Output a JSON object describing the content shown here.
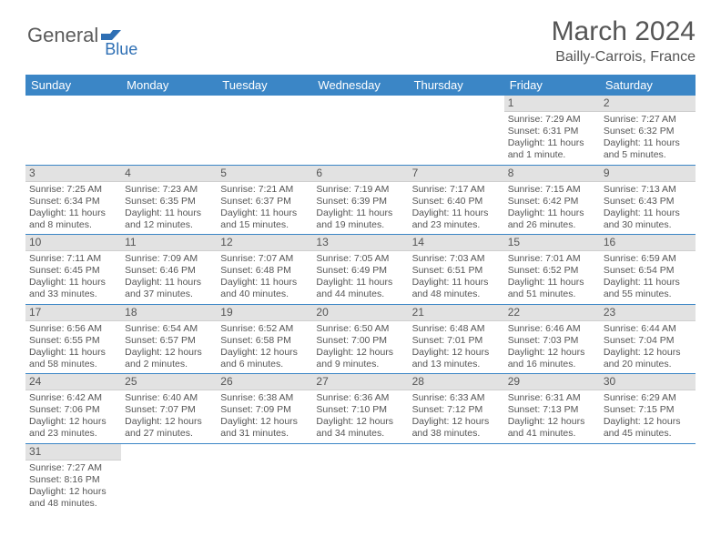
{
  "logo": {
    "part1": "General",
    "part2": "Blue"
  },
  "title": {
    "month": "March 2024",
    "location": "Bailly-Carrois, France"
  },
  "colors": {
    "header_bg": "#3b86c6",
    "header_fg": "#ffffff",
    "daynum_bg": "#e2e2e2",
    "row_divider": "#3b86c6",
    "text": "#555555",
    "logo_gray": "#5b5b5b",
    "logo_blue": "#2e6fb4"
  },
  "weekdays": [
    "Sunday",
    "Monday",
    "Tuesday",
    "Wednesday",
    "Thursday",
    "Friday",
    "Saturday"
  ],
  "weeks": [
    [
      null,
      null,
      null,
      null,
      null,
      {
        "n": "1",
        "sr": "Sunrise: 7:29 AM",
        "ss": "Sunset: 6:31 PM",
        "dl": "Daylight: 11 hours and 1 minute."
      },
      {
        "n": "2",
        "sr": "Sunrise: 7:27 AM",
        "ss": "Sunset: 6:32 PM",
        "dl": "Daylight: 11 hours and 5 minutes."
      }
    ],
    [
      {
        "n": "3",
        "sr": "Sunrise: 7:25 AM",
        "ss": "Sunset: 6:34 PM",
        "dl": "Daylight: 11 hours and 8 minutes."
      },
      {
        "n": "4",
        "sr": "Sunrise: 7:23 AM",
        "ss": "Sunset: 6:35 PM",
        "dl": "Daylight: 11 hours and 12 minutes."
      },
      {
        "n": "5",
        "sr": "Sunrise: 7:21 AM",
        "ss": "Sunset: 6:37 PM",
        "dl": "Daylight: 11 hours and 15 minutes."
      },
      {
        "n": "6",
        "sr": "Sunrise: 7:19 AM",
        "ss": "Sunset: 6:39 PM",
        "dl": "Daylight: 11 hours and 19 minutes."
      },
      {
        "n": "7",
        "sr": "Sunrise: 7:17 AM",
        "ss": "Sunset: 6:40 PM",
        "dl": "Daylight: 11 hours and 23 minutes."
      },
      {
        "n": "8",
        "sr": "Sunrise: 7:15 AM",
        "ss": "Sunset: 6:42 PM",
        "dl": "Daylight: 11 hours and 26 minutes."
      },
      {
        "n": "9",
        "sr": "Sunrise: 7:13 AM",
        "ss": "Sunset: 6:43 PM",
        "dl": "Daylight: 11 hours and 30 minutes."
      }
    ],
    [
      {
        "n": "10",
        "sr": "Sunrise: 7:11 AM",
        "ss": "Sunset: 6:45 PM",
        "dl": "Daylight: 11 hours and 33 minutes."
      },
      {
        "n": "11",
        "sr": "Sunrise: 7:09 AM",
        "ss": "Sunset: 6:46 PM",
        "dl": "Daylight: 11 hours and 37 minutes."
      },
      {
        "n": "12",
        "sr": "Sunrise: 7:07 AM",
        "ss": "Sunset: 6:48 PM",
        "dl": "Daylight: 11 hours and 40 minutes."
      },
      {
        "n": "13",
        "sr": "Sunrise: 7:05 AM",
        "ss": "Sunset: 6:49 PM",
        "dl": "Daylight: 11 hours and 44 minutes."
      },
      {
        "n": "14",
        "sr": "Sunrise: 7:03 AM",
        "ss": "Sunset: 6:51 PM",
        "dl": "Daylight: 11 hours and 48 minutes."
      },
      {
        "n": "15",
        "sr": "Sunrise: 7:01 AM",
        "ss": "Sunset: 6:52 PM",
        "dl": "Daylight: 11 hours and 51 minutes."
      },
      {
        "n": "16",
        "sr": "Sunrise: 6:59 AM",
        "ss": "Sunset: 6:54 PM",
        "dl": "Daylight: 11 hours and 55 minutes."
      }
    ],
    [
      {
        "n": "17",
        "sr": "Sunrise: 6:56 AM",
        "ss": "Sunset: 6:55 PM",
        "dl": "Daylight: 11 hours and 58 minutes."
      },
      {
        "n": "18",
        "sr": "Sunrise: 6:54 AM",
        "ss": "Sunset: 6:57 PM",
        "dl": "Daylight: 12 hours and 2 minutes."
      },
      {
        "n": "19",
        "sr": "Sunrise: 6:52 AM",
        "ss": "Sunset: 6:58 PM",
        "dl": "Daylight: 12 hours and 6 minutes."
      },
      {
        "n": "20",
        "sr": "Sunrise: 6:50 AM",
        "ss": "Sunset: 7:00 PM",
        "dl": "Daylight: 12 hours and 9 minutes."
      },
      {
        "n": "21",
        "sr": "Sunrise: 6:48 AM",
        "ss": "Sunset: 7:01 PM",
        "dl": "Daylight: 12 hours and 13 minutes."
      },
      {
        "n": "22",
        "sr": "Sunrise: 6:46 AM",
        "ss": "Sunset: 7:03 PM",
        "dl": "Daylight: 12 hours and 16 minutes."
      },
      {
        "n": "23",
        "sr": "Sunrise: 6:44 AM",
        "ss": "Sunset: 7:04 PM",
        "dl": "Daylight: 12 hours and 20 minutes."
      }
    ],
    [
      {
        "n": "24",
        "sr": "Sunrise: 6:42 AM",
        "ss": "Sunset: 7:06 PM",
        "dl": "Daylight: 12 hours and 23 minutes."
      },
      {
        "n": "25",
        "sr": "Sunrise: 6:40 AM",
        "ss": "Sunset: 7:07 PM",
        "dl": "Daylight: 12 hours and 27 minutes."
      },
      {
        "n": "26",
        "sr": "Sunrise: 6:38 AM",
        "ss": "Sunset: 7:09 PM",
        "dl": "Daylight: 12 hours and 31 minutes."
      },
      {
        "n": "27",
        "sr": "Sunrise: 6:36 AM",
        "ss": "Sunset: 7:10 PM",
        "dl": "Daylight: 12 hours and 34 minutes."
      },
      {
        "n": "28",
        "sr": "Sunrise: 6:33 AM",
        "ss": "Sunset: 7:12 PM",
        "dl": "Daylight: 12 hours and 38 minutes."
      },
      {
        "n": "29",
        "sr": "Sunrise: 6:31 AM",
        "ss": "Sunset: 7:13 PM",
        "dl": "Daylight: 12 hours and 41 minutes."
      },
      {
        "n": "30",
        "sr": "Sunrise: 6:29 AM",
        "ss": "Sunset: 7:15 PM",
        "dl": "Daylight: 12 hours and 45 minutes."
      }
    ],
    [
      {
        "n": "31",
        "sr": "Sunrise: 7:27 AM",
        "ss": "Sunset: 8:16 PM",
        "dl": "Daylight: 12 hours and 48 minutes."
      },
      null,
      null,
      null,
      null,
      null,
      null
    ]
  ]
}
